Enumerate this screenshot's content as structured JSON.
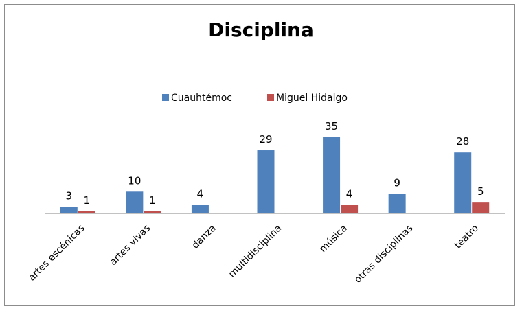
{
  "chart_data": {
    "type": "bar",
    "title": "Disciplina",
    "categories": [
      "artes escénicas",
      "artes vivas",
      "danza",
      "multidisciplina",
      "música",
      "otras disciplinas",
      "teatro"
    ],
    "series": [
      {
        "name": "Cuauhtémoc",
        "color": "#4f81bd",
        "values": [
          3,
          10,
          4,
          29,
          35,
          9,
          28
        ]
      },
      {
        "name": "Miguel Hidalgo",
        "color": "#c0504d",
        "values": [
          1,
          1,
          null,
          null,
          4,
          null,
          5
        ]
      }
    ],
    "ylim": [
      0,
      35
    ],
    "grid": false,
    "legend": "top-center",
    "xlabel": "",
    "ylabel": ""
  }
}
